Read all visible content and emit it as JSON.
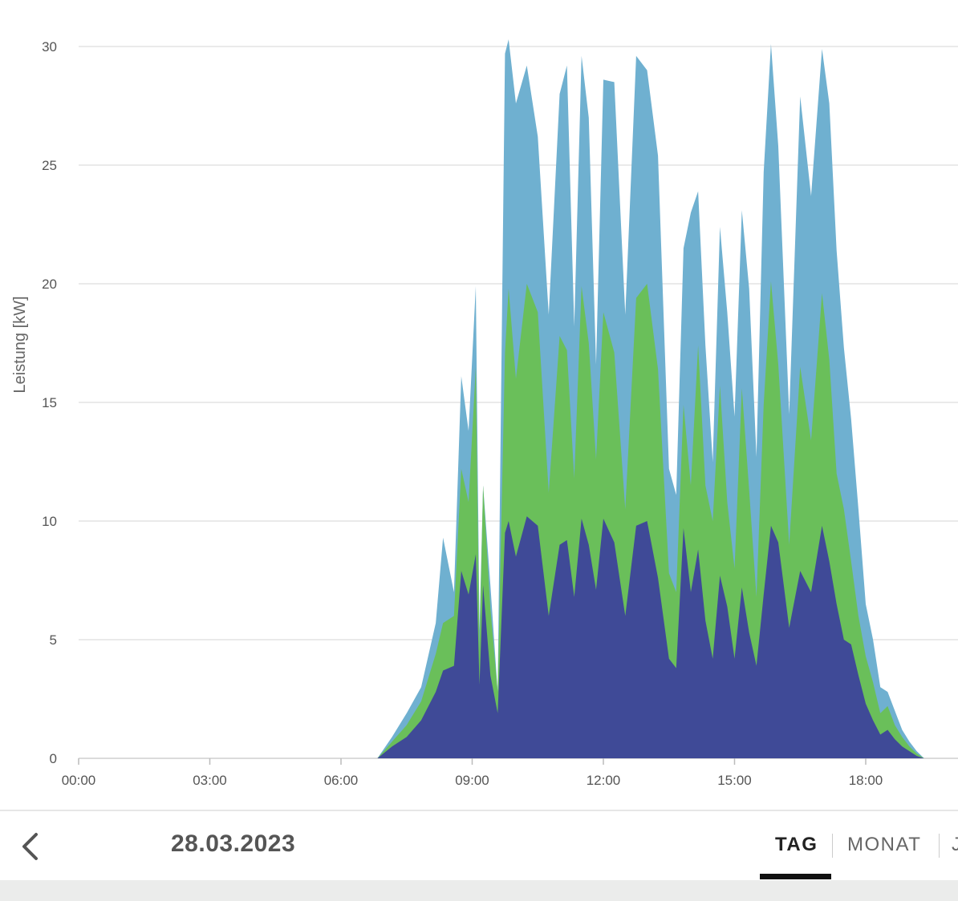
{
  "chart_data": {
    "type": "area",
    "stacked": true,
    "ylabel": "Leistung [kW]",
    "xlabel": "",
    "ylim": [
      0,
      30
    ],
    "xlim": [
      "00:00",
      "20:30"
    ],
    "yticks": [
      "0",
      "5",
      "10",
      "15",
      "20",
      "25",
      "30"
    ],
    "xticks": [
      "00:00",
      "03:00",
      "06:00",
      "09:00",
      "12:00",
      "15:00",
      "18:00"
    ],
    "grid": true,
    "legend": "none",
    "x": [
      "06:50",
      "07:10",
      "07:30",
      "07:50",
      "08:10",
      "08:20",
      "08:35",
      "08:45",
      "08:55",
      "09:05",
      "09:10",
      "09:15",
      "09:25",
      "09:35",
      "09:45",
      "09:50",
      "10:00",
      "10:15",
      "10:30",
      "10:45",
      "11:00",
      "11:10",
      "11:20",
      "11:30",
      "11:40",
      "11:50",
      "12:00",
      "12:15",
      "12:30",
      "12:45",
      "13:00",
      "13:15",
      "13:30",
      "13:40",
      "13:50",
      "14:00",
      "14:10",
      "14:20",
      "14:30",
      "14:40",
      "14:50",
      "15:00",
      "15:10",
      "15:20",
      "15:30",
      "15:40",
      "15:50",
      "16:00",
      "16:15",
      "16:30",
      "16:45",
      "17:00",
      "17:10",
      "17:20",
      "17:30",
      "17:40",
      "17:50",
      "18:00",
      "18:10",
      "18:20",
      "18:30",
      "18:40",
      "18:50",
      "19:00",
      "19:10",
      "19:20",
      "19:30"
    ],
    "series": [
      {
        "color": "#3f4a97",
        "values": [
          0,
          0.5,
          0.9,
          1.6,
          2.8,
          3.7,
          3.9,
          7.9,
          6.9,
          8.6,
          3.1,
          7.3,
          3.5,
          1.9,
          9.5,
          10.0,
          8.5,
          10.2,
          9.8,
          6.0,
          9.0,
          9.2,
          6.8,
          10.1,
          9.0,
          7.1,
          10.1,
          9.1,
          6.0,
          9.8,
          10.0,
          7.6,
          4.2,
          3.8,
          9.7,
          7.0,
          8.8,
          5.8,
          4.2,
          7.7,
          6.4,
          4.2,
          7.2,
          5.3,
          3.9,
          6.9,
          9.8,
          9.1,
          5.5,
          7.9,
          7.0,
          9.8,
          8.3,
          6.5,
          5.0,
          4.8,
          3.5,
          2.3,
          1.6,
          1.0,
          1.2,
          0.8,
          0.5,
          0.3,
          0.1,
          0,
          0
        ]
      },
      {
        "color": "#6abf5a",
        "values": [
          0,
          0.2,
          0.5,
          0.8,
          1.6,
          2.0,
          2.1,
          4.3,
          3.9,
          7.9,
          1.5,
          4.2,
          2.8,
          0.9,
          7.6,
          9.8,
          7.5,
          9.8,
          9.0,
          5.2,
          8.8,
          8.0,
          5.0,
          9.8,
          8.5,
          5.5,
          8.7,
          8.0,
          4.5,
          9.6,
          10.0,
          8.8,
          3.6,
          3.2,
          5.2,
          4.5,
          8.6,
          5.7,
          5.8,
          8.0,
          4.4,
          3.8,
          8.4,
          6.0,
          2.9,
          8.0,
          10.3,
          7.5,
          3.5,
          8.6,
          6.4,
          9.8,
          8.5,
          5.5,
          5.5,
          3.5,
          2.5,
          2.0,
          1.6,
          0.9,
          1.0,
          0.6,
          0.4,
          0.2,
          0.1,
          0,
          0
        ]
      },
      {
        "color": "#6fb0d0",
        "values": [
          0,
          0.2,
          0.5,
          0.6,
          1.3,
          3.6,
          1.0,
          3.9,
          3.0,
          3.4,
          0.8,
          0,
          1.0,
          0,
          12.6,
          10.5,
          11.6,
          9.2,
          7.4,
          7.5,
          10.2,
          12.0,
          6.4,
          9.7,
          9.5,
          4.0,
          9.8,
          11.4,
          8.2,
          10.2,
          9.0,
          9.0,
          4.4,
          4.1,
          6.6,
          11.5,
          6.5,
          5.9,
          2.5,
          6.7,
          8.0,
          6.4,
          7.5,
          8.5,
          5.9,
          9.8,
          10.0,
          9.2,
          5.5,
          11.4,
          10.3,
          10.3,
          10.8,
          9.4,
          6.8,
          6.0,
          4.5,
          2.2,
          1.8,
          1.1,
          0.6,
          0.6,
          0.3,
          0.2,
          0.1,
          0,
          0
        ]
      }
    ]
  },
  "navigation": {
    "back_icon": "chevron-left-icon",
    "date": "28.03.2023",
    "tabs": [
      {
        "label": "TAG",
        "active": true
      },
      {
        "label": "MONAT",
        "active": false
      },
      {
        "label": "J",
        "active": false
      }
    ]
  },
  "colors": {
    "active_tab_indicator": "#111111",
    "footer": "#ebeceb"
  }
}
